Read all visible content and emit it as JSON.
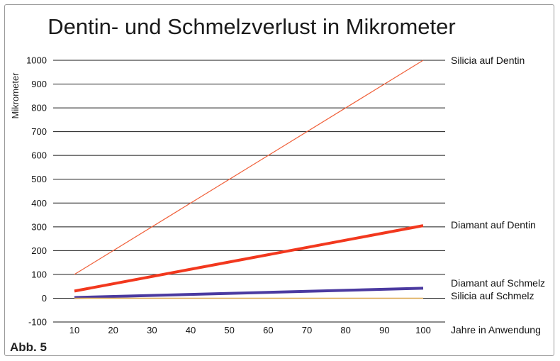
{
  "figure_label": "Abb. 5",
  "chart_data": {
    "type": "line",
    "title": "Dentin- und Schmelzverlust in Mikrometer",
    "ylabel": "Mikrometer",
    "xlabel": "Jahre in Anwendung",
    "x": [
      10,
      20,
      30,
      40,
      50,
      60,
      70,
      80,
      90,
      100
    ],
    "ylim": [
      -100,
      1000
    ],
    "yticks": [
      -100,
      0,
      100,
      200,
      300,
      400,
      500,
      600,
      700,
      800,
      900,
      1000
    ],
    "grid": true,
    "legend": "labels at line ends (right)",
    "series": [
      {
        "name": "Silicia auf Dentin",
        "x": [
          10,
          100
        ],
        "y": [
          100,
          1000
        ],
        "color": "#f0603a",
        "width": 1.2
      },
      {
        "name": "Diamant auf Dentin",
        "x": [
          10,
          100
        ],
        "y": [
          30,
          305
        ],
        "color": "#f2381e",
        "width": 4
      },
      {
        "name": "Diamant auf Schmelz",
        "x": [
          10,
          100
        ],
        "y": [
          3,
          42
        ],
        "color": "#4b3aa0",
        "width": 4
      },
      {
        "name": "Silicia auf Schmelz",
        "x": [
          10,
          100
        ],
        "y": [
          0,
          0
        ],
        "color": "#d9a64a",
        "width": 1.5
      }
    ]
  }
}
